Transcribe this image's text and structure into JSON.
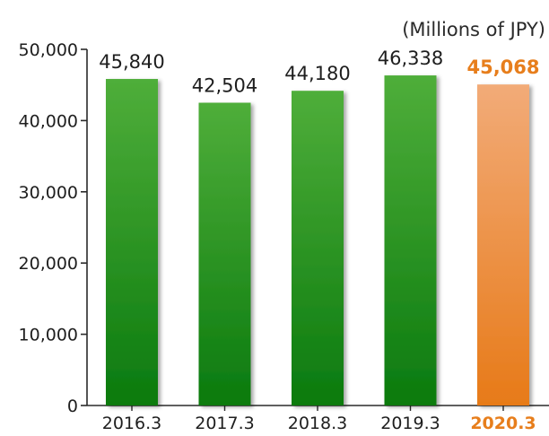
{
  "chart_data": {
    "type": "bar",
    "unit_label": "(Millions of JPY)",
    "categories": [
      "2016.3",
      "2017.3",
      "2018.3",
      "2019.3",
      "2020.3"
    ],
    "values": [
      45840,
      42504,
      44180,
      46338,
      45068
    ],
    "value_labels": [
      "45,840",
      "42,504",
      "44,180",
      "46,338",
      "45,068"
    ],
    "highlight_index": 4,
    "ylim": [
      0,
      50000
    ],
    "yticks": [
      0,
      10000,
      20000,
      30000,
      40000,
      50000
    ],
    "ytick_labels": [
      "0",
      "10,000",
      "20,000",
      "30,000",
      "40,000",
      "50,000"
    ],
    "grid": false,
    "colors": {
      "bar_top": "#4fae3a",
      "bar_bottom": "#0a7a0e",
      "highlight_top": "#f2ab78",
      "highlight_bottom": "#e77a18",
      "highlight_text": "#e77e1c",
      "axis": "#2a2a2a"
    }
  }
}
